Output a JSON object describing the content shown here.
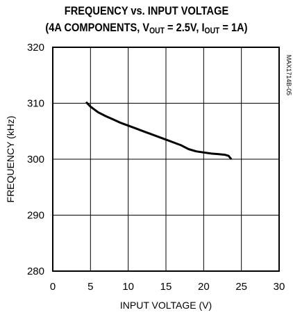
{
  "chart_data": {
    "type": "line",
    "title_line1": "FREQUENCY vs. INPUT VOLTAGE",
    "title_line2_pre": "(4A COMPONENTS, V",
    "title_line2_sub1": "OUT",
    "title_line2_mid": " = 2.5V, I",
    "title_line2_sub2": "OUT",
    "title_line2_post": " = 1A)",
    "xlabel": "INPUT VOLTAGE (V)",
    "ylabel": "FREQUENCY (kHz)",
    "side_label": "MAX1714B-05",
    "xlim": [
      0,
      30
    ],
    "ylim": [
      280,
      320
    ],
    "x_ticks": [
      0,
      5,
      10,
      15,
      20,
      25,
      30
    ],
    "y_ticks": [
      280,
      290,
      300,
      310,
      320
    ],
    "grid": true,
    "series": [
      {
        "x": [
          4.5,
          5,
          6,
          7,
          8,
          9,
          10,
          11,
          12,
          13,
          14,
          15,
          16,
          17,
          18,
          19,
          20,
          21,
          22,
          22.8,
          23.3,
          23.6
        ],
        "y": [
          310.1,
          309.4,
          308.4,
          307.7,
          307.1,
          306.5,
          306.0,
          305.5,
          305.0,
          304.5,
          304.0,
          303.5,
          303.0,
          302.5,
          301.8,
          301.4,
          301.2,
          301.0,
          300.9,
          300.8,
          300.6,
          300.1
        ]
      }
    ]
  }
}
